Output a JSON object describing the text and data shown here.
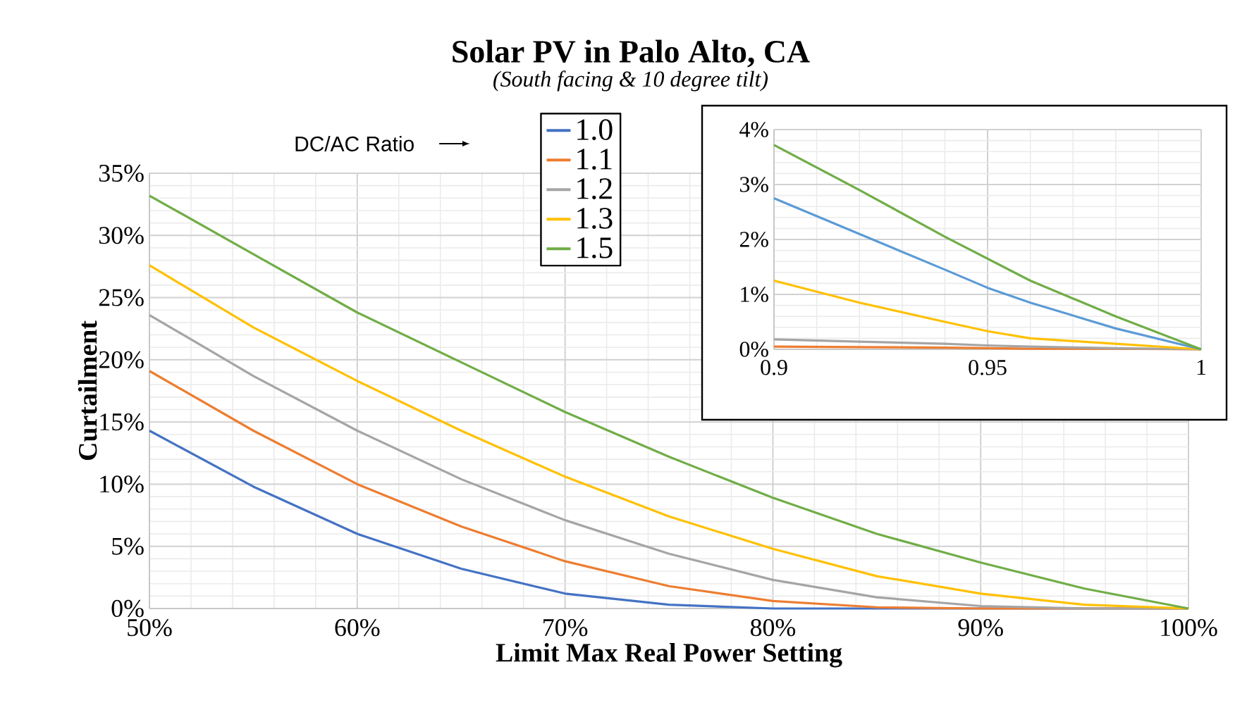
{
  "chart_data": [
    {
      "type": "line",
      "title": "Solar PV in Palo Alto, CA",
      "subtitle": "*(South facing & 10 degree tilt)*",
      "xlabel": "Limit Max Real Power Setting",
      "ylabel": "Curtailment",
      "legend_title": "DC/AC Ratio",
      "x": [
        50,
        55,
        60,
        65,
        70,
        75,
        80,
        85,
        90,
        95,
        100
      ],
      "series": [
        {
          "name": "1.0",
          "color": "#4472c4",
          "values": [
            14.3,
            9.8,
            6.0,
            3.2,
            1.2,
            0.3,
            0,
            0,
            0,
            0,
            0
          ]
        },
        {
          "name": "1.1",
          "color": "#ed7d31",
          "values": [
            19.1,
            14.3,
            10.0,
            6.6,
            3.8,
            1.8,
            0.6,
            0.1,
            0,
            0,
            0
          ]
        },
        {
          "name": "1.2",
          "color": "#a5a5a5",
          "values": [
            23.6,
            18.7,
            14.3,
            10.4,
            7.1,
            4.4,
            2.3,
            0.9,
            0.2,
            0,
            0
          ]
        },
        {
          "name": "1.3",
          "color": "#ffc000",
          "values": [
            27.6,
            22.6,
            18.3,
            14.3,
            10.6,
            7.4,
            4.8,
            2.6,
            1.2,
            0.3,
            0
          ]
        },
        {
          "name": "1.5",
          "color": "#70ad47",
          "values": [
            33.2,
            28.5,
            23.8,
            19.8,
            15.8,
            12.2,
            8.9,
            6.0,
            3.7,
            1.6,
            0
          ]
        }
      ],
      "xlim": [
        50,
        100
      ],
      "ylim": [
        0,
        35
      ],
      "xticks": [
        {
          "value": 50,
          "label": "50%"
        },
        {
          "value": 60,
          "label": "60%"
        },
        {
          "value": 70,
          "label": "70%"
        },
        {
          "value": 80,
          "label": "80%"
        },
        {
          "value": 90,
          "label": "90%"
        },
        {
          "value": 100,
          "label": "100%"
        }
      ],
      "yticks": [
        {
          "value": 0,
          "label": "0%"
        },
        {
          "value": 5,
          "label": "5%"
        },
        {
          "value": 10,
          "label": "10%"
        },
        {
          "value": 15,
          "label": "15%"
        },
        {
          "value": 20,
          "label": "20%"
        },
        {
          "value": 25,
          "label": "25%"
        },
        {
          "value": 30,
          "label": "30%"
        },
        {
          "value": 35,
          "label": "35%"
        }
      ],
      "grid": true,
      "legend": "top"
    },
    {
      "type": "line",
      "x": [
        0.9,
        0.92,
        0.94,
        0.95,
        0.96,
        0.98,
        1
      ],
      "series": [
        {
          "color": "#ed7d31",
          "values": [
            0.05,
            0.04,
            0.03,
            0.02,
            0.01,
            0.01,
            0
          ]
        },
        {
          "color": "#a5a5a5",
          "values": [
            0.18,
            0.14,
            0.1,
            0.07,
            0.05,
            0.02,
            0
          ]
        },
        {
          "color": "#ffc000",
          "values": [
            1.25,
            0.85,
            0.5,
            0.33,
            0.2,
            0.1,
            0
          ]
        },
        {
          "color": "#5b9bd5",
          "values": [
            2.75,
            2.1,
            1.45,
            1.12,
            0.85,
            0.38,
            0
          ]
        },
        {
          "color": "#70ad47",
          "values": [
            3.72,
            2.9,
            2.05,
            1.65,
            1.25,
            0.6,
            0
          ]
        }
      ],
      "xlim": [
        0.9,
        1
      ],
      "ylim": [
        0,
        4
      ],
      "xticks": [
        0.9,
        0.95,
        1
      ],
      "yticks": [
        {
          "value": 0,
          "label": "0%"
        },
        {
          "value": 1,
          "label": "1%"
        },
        {
          "value": 2,
          "label": "2%"
        },
        {
          "value": 3,
          "label": "3%"
        },
        {
          "value": 4,
          "label": "4%"
        }
      ],
      "grid": true
    }
  ]
}
